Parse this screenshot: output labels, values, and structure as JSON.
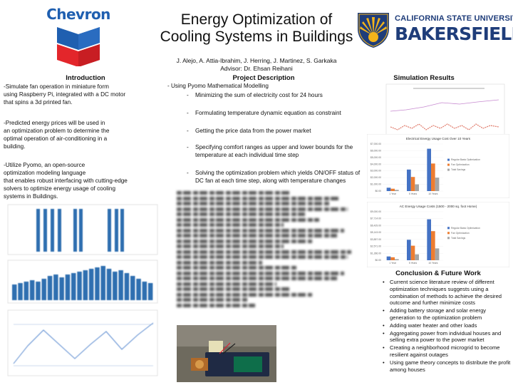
{
  "header": {
    "left_logo_text": "Chevron",
    "title_line1": "Energy Optimization of",
    "title_line2": "Cooling Systems in Buildings",
    "authors": "J. Alejo, A. Attia-Ibrahim, J. Herring, J. Martinez, S. Garkaka",
    "advisor": "Advisor: Dr. Ehsan Reihani",
    "right_logo_top": "CALIFORNIA STATE UNIVERSITY",
    "right_logo_big": "BAKERSFIELD"
  },
  "introduction": {
    "heading": "Introduction",
    "paragraphs": [
      "-Simulate fan operation in miniature form\nusing Raspberry Pi, integrated with a DC motor\nthat spins a 3d printed fan.",
      "-Predicted energy prices will be used in\nan optimization problem to determine the\noptimal operation of air-conditioning in a\nbuilding.",
      "-Utilize Pyomo, an open-source\noptimization modeling language\nthat enables robust interfacing with cutting-edge\nsolvers to optimize energy usage of cooling\nsystems in Buildings."
    ]
  },
  "project": {
    "heading": "Project Description",
    "main_item": "-   Using Pyomo Mathematical Modelling",
    "sub_items": [
      "Minimizing the sum of electricity cost for 24 hours",
      "Formulating temperature dynamic equation as constraint",
      "Getting the price data from the power market",
      "Specifying comfort ranges as upper and lower bounds for the temperature at each individual time step",
      "Solving the optimization problem which yields ON/OFF status of DC fan at each time step, along with temperature changes"
    ]
  },
  "simulation": {
    "heading": "Simulation Results",
    "legend": [
      "Regular Basis Optimization",
      "Fan Optimization",
      "Total Savings"
    ]
  },
  "conclusion": {
    "heading": "Conclusion & Future Work",
    "items": [
      "Current science literature review of different optimization techniques suggests using a combination of methods to achieve the desired outcome and further minimize costs",
      "Adding battery storage and solar energy generation to the optimization problem",
      "Adding water heater and other loads",
      "Aggregating power from individual houses and selling extra power to the power market",
      "Creating a neighborhood microgrid to become resilient against outages",
      "Using game theory concepts to distribute the profit among houses"
    ]
  },
  "chart_data": [
    {
      "type": "bar",
      "title": "Electrical Energy Usage Cost Over 10 Years",
      "categories": [
        "1 Year",
        "5 Years",
        "10 Years"
      ],
      "series": [
        {
          "name": "Regular Basis Optimization",
          "values": [
            500,
            3200,
            6300
          ]
        },
        {
          "name": "Fan Optimization",
          "values": [
            350,
            2100,
            4100
          ]
        },
        {
          "name": "Total Savings",
          "values": [
            180,
            1000,
            2000
          ]
        }
      ],
      "ylim": [
        0,
        7000
      ],
      "colors": [
        "#4472c4",
        "#ed7d31",
        "#a5a5a5"
      ]
    },
    {
      "type": "bar",
      "title": "AC Energy Usage Costs (1500 - 2000 sq. foot Home)",
      "categories": [
        "1 Year",
        "5 Years",
        "10 Years"
      ],
      "series": [
        {
          "name": "Regular Basis Optimization",
          "values": [
            700,
            3800,
            7600
          ]
        },
        {
          "name": "Fan Optimization",
          "values": [
            550,
            2700,
            5400
          ]
        },
        {
          "name": "Total Savings",
          "values": [
            200,
            1100,
            2200
          ]
        }
      ],
      "ylim": [
        0,
        9000
      ],
      "colors": [
        "#4472c4",
        "#ed7d31",
        "#a5a5a5"
      ]
    }
  ]
}
